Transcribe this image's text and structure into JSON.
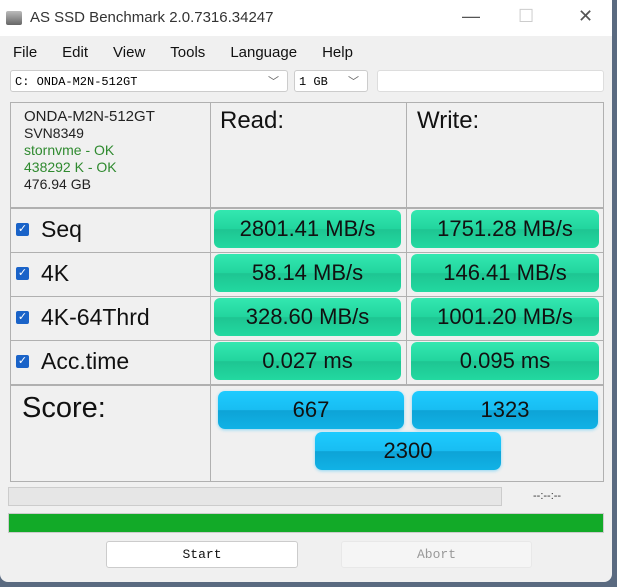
{
  "window": {
    "title": "AS SSD Benchmark 2.0.7316.34247",
    "minimize": "—",
    "maximize": "☐",
    "close": "✕"
  },
  "menu": [
    "File",
    "Edit",
    "View",
    "Tools",
    "Language",
    "Help"
  ],
  "toolbar": {
    "drive": "C: ONDA-M2N-512GT",
    "size": "1 GB",
    "extra": ""
  },
  "info": {
    "model": "ONDA-M2N-512GT",
    "firmware": "SVN8349",
    "driver": "stornvme - OK",
    "alignment": "438292 K - OK",
    "capacity": "476.94 GB"
  },
  "headers": {
    "read": "Read:",
    "write": "Write:",
    "score": "Score:"
  },
  "rows": [
    {
      "label": "Seq",
      "checked": true,
      "read": "2801.41 MB/s",
      "write": "1751.28 MB/s"
    },
    {
      "label": "4K",
      "checked": true,
      "read": "58.14 MB/s",
      "write": "146.41 MB/s"
    },
    {
      "label": "4K-64Thrd",
      "checked": true,
      "read": "328.60 MB/s",
      "write": "1001.20 MB/s"
    },
    {
      "label": "Acc.time",
      "checked": true,
      "read": "0.027 ms",
      "write": "0.095 ms"
    }
  ],
  "score": {
    "read": "667",
    "write": "1323",
    "total": "2300"
  },
  "progress": {
    "test_percent": 0,
    "time": "--:--:--",
    "overall_percent": 100,
    "overall_color": "#12aa28"
  },
  "buttons": {
    "start": "Start",
    "abort": "Abort"
  },
  "colors": {
    "result": "#22d59e",
    "score": "#18bdf2"
  }
}
